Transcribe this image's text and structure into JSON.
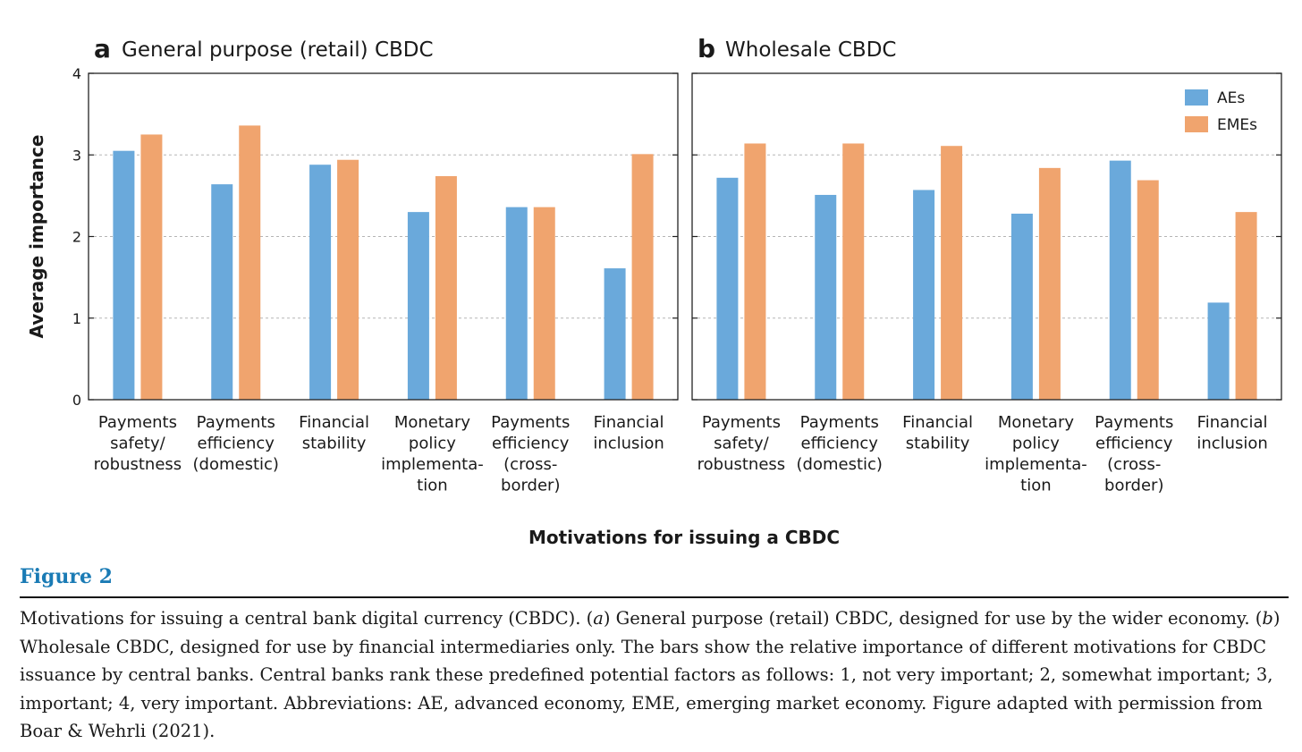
{
  "chart_data": {
    "type": "bar",
    "ylabel": "Average importance",
    "xlabel": "Motivations for issuing a CBDC",
    "ylim": [
      0,
      4
    ],
    "yticks": [
      0,
      1,
      2,
      3,
      4
    ],
    "grid": true,
    "legend": {
      "placement": "top-right",
      "entries": [
        "AEs",
        "EMEs"
      ]
    },
    "colors": {
      "AEs": "#6aa9db",
      "EMEs": "#f0a46e"
    },
    "panels": [
      {
        "letter": "a",
        "title": "General purpose (retail) CBDC",
        "categories": [
          [
            "Payments",
            "safety/",
            "robustness"
          ],
          [
            "Payments",
            "efficiency",
            "(domestic)"
          ],
          [
            "Financial",
            "stability"
          ],
          [
            "Monetary",
            "policy",
            "implementa-",
            "tion"
          ],
          [
            "Payments",
            "efficiency",
            "(cross-",
            "border)"
          ],
          [
            "Financial",
            "inclusion"
          ]
        ],
        "series": [
          {
            "name": "AEs",
            "values": [
              3.05,
              2.64,
              2.88,
              2.3,
              2.36,
              1.61
            ]
          },
          {
            "name": "EMEs",
            "values": [
              3.25,
              3.36,
              2.94,
              2.74,
              2.36,
              3.01
            ]
          }
        ]
      },
      {
        "letter": "b",
        "title": "Wholesale CBDC",
        "categories": [
          [
            "Payments",
            "safety/",
            "robustness"
          ],
          [
            "Payments",
            "efficiency",
            "(domestic)"
          ],
          [
            "Financial",
            "stability"
          ],
          [
            "Monetary",
            "policy",
            "implementa-",
            "tion"
          ],
          [
            "Payments",
            "efficiency",
            "(cross-",
            "border)"
          ],
          [
            "Financial",
            "inclusion"
          ]
        ],
        "series": [
          {
            "name": "AEs",
            "values": [
              2.72,
              2.51,
              2.57,
              2.28,
              2.93,
              1.19
            ]
          },
          {
            "name": "EMEs",
            "values": [
              3.14,
              3.14,
              3.11,
              2.84,
              2.69,
              2.3
            ]
          }
        ]
      }
    ]
  },
  "figure": {
    "label": "Figure 2",
    "caption": {
      "p1": "Motivations for issuing a central bank digital currency (CBDC). (",
      "a": "a",
      "p2": ") General purpose (retail) CBDC, designed for use by the wider economy. (",
      "b": "b",
      "p3": ") Wholesale CBDC, designed for use by financial intermediaries only. The bars show the relative importance of different motivations for CBDC issuance by central banks. Central banks rank these predefined potential factors as follows: 1, not very important; 2, somewhat important; 3, important; 4, very important. Abbreviations: AE, advanced economy, EME, emerging market economy. Figure adapted with permission from Boar & Wehrli (2021)."
    }
  }
}
